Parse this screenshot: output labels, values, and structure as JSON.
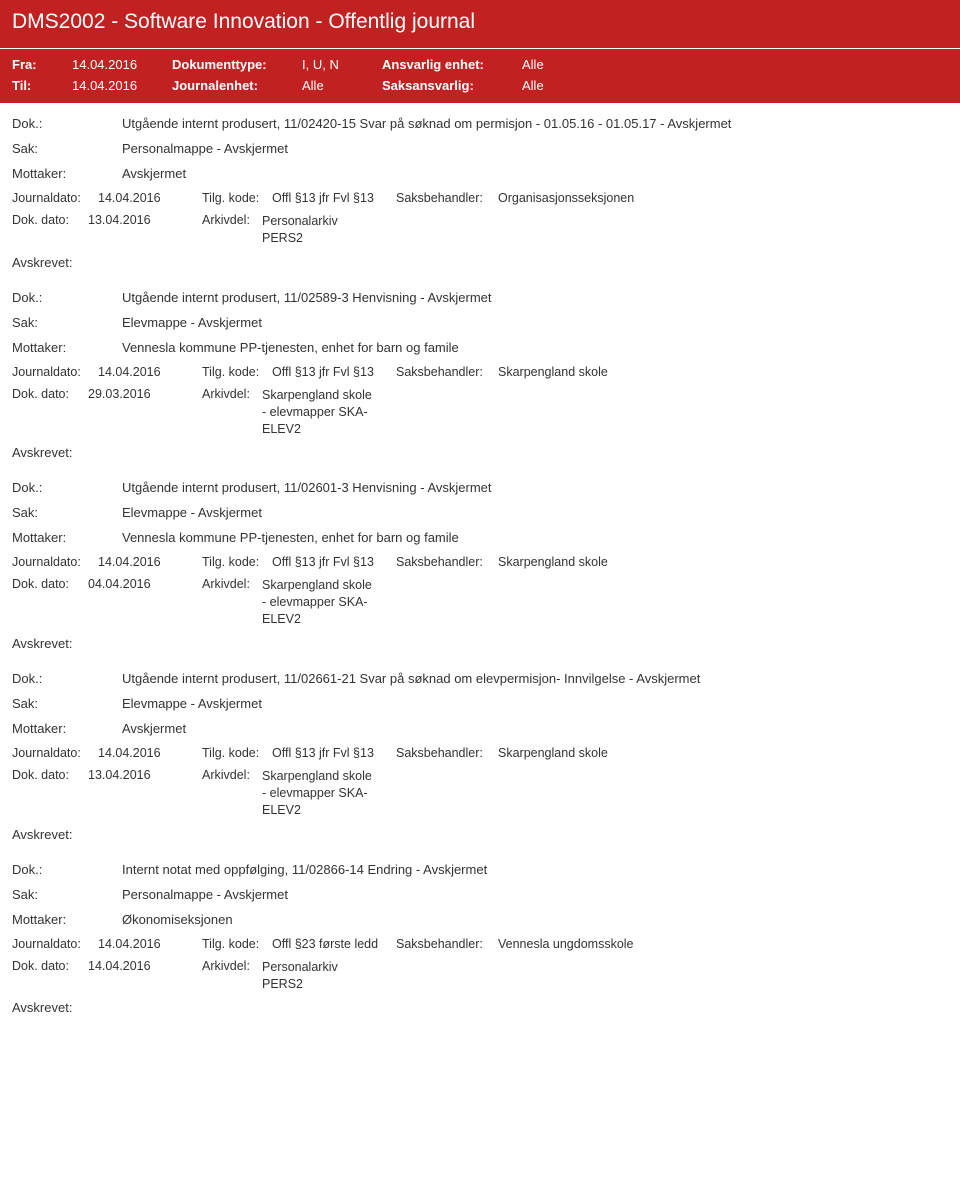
{
  "header": {
    "title": "DMS2002 - Software Innovation - Offentlig journal"
  },
  "meta": {
    "fra_label": "Fra:",
    "fra_value": "14.04.2016",
    "til_label": "Til:",
    "til_value": "14.04.2016",
    "doktype_label": "Dokumenttype:",
    "doktype_value": "I, U, N",
    "journalenhet_label": "Journalenhet:",
    "journalenhet_value": "Alle",
    "ansvarlig_label": "Ansvarlig enhet:",
    "ansvarlig_value": "Alle",
    "saksansvarlig_label": "Saksansvarlig:",
    "saksansvarlig_value": "Alle"
  },
  "labels": {
    "dok": "Dok.:",
    "sak": "Sak:",
    "mottaker": "Mottaker:",
    "journaldato": "Journaldato:",
    "tilgkode": "Tilg. kode:",
    "saksbehandler": "Saksbehandler:",
    "dokdato": "Dok. dato:",
    "arkivdel": "Arkivdel:",
    "avskrevet": "Avskrevet:"
  },
  "entries": [
    {
      "dok": "Utgående internt produsert, 11/02420-15 Svar på søknad om permisjon - 01.05.16 - 01.05.17 - Avskjermet",
      "sak": "Personalmappe - Avskjermet",
      "mottaker": "Avskjermet",
      "journaldato": "14.04.2016",
      "tilgkode": "Offl §13 jfr Fvl §13",
      "saksbehandler": "Organisasjonsseksjonen",
      "dokdato": "13.04.2016",
      "arkivdel": "Personalarkiv\nPERS2"
    },
    {
      "dok": "Utgående internt produsert, 11/02589-3 Henvisning - Avskjermet",
      "sak": "Elevmappe - Avskjermet",
      "mottaker": "Vennesla kommune PP-tjenesten, enhet for barn og famile",
      "journaldato": "14.04.2016",
      "tilgkode": "Offl §13 jfr Fvl §13",
      "saksbehandler": "Skarpengland skole",
      "dokdato": "29.03.2016",
      "arkivdel": "Skarpengland skole\n- elevmapper SKA-\nELEV2"
    },
    {
      "dok": "Utgående internt produsert, 11/02601-3 Henvisning - Avskjermet",
      "sak": "Elevmappe - Avskjermet",
      "mottaker": "Vennesla kommune PP-tjenesten, enhet for barn og famile",
      "journaldato": "14.04.2016",
      "tilgkode": "Offl §13 jfr Fvl §13",
      "saksbehandler": "Skarpengland skole",
      "dokdato": "04.04.2016",
      "arkivdel": "Skarpengland skole\n- elevmapper SKA-\nELEV2"
    },
    {
      "dok": "Utgående internt produsert, 11/02661-21 Svar på søknad om elevpermisjon- Innvilgelse - Avskjermet",
      "sak": "Elevmappe - Avskjermet",
      "mottaker": "Avskjermet",
      "journaldato": "14.04.2016",
      "tilgkode": "Offl §13 jfr Fvl §13",
      "saksbehandler": "Skarpengland skole",
      "dokdato": "13.04.2016",
      "arkivdel": "Skarpengland skole\n- elevmapper SKA-\nELEV2"
    },
    {
      "dok": "Internt notat med oppfølging, 11/02866-14 Endring - Avskjermet",
      "sak": "Personalmappe - Avskjermet",
      "mottaker": "Økonomiseksjonen",
      "journaldato": "14.04.2016",
      "tilgkode": "Offl §23 første ledd",
      "saksbehandler": "Vennesla ungdomsskole",
      "dokdato": "14.04.2016",
      "arkivdel": "Personalarkiv\nPERS2"
    }
  ]
}
